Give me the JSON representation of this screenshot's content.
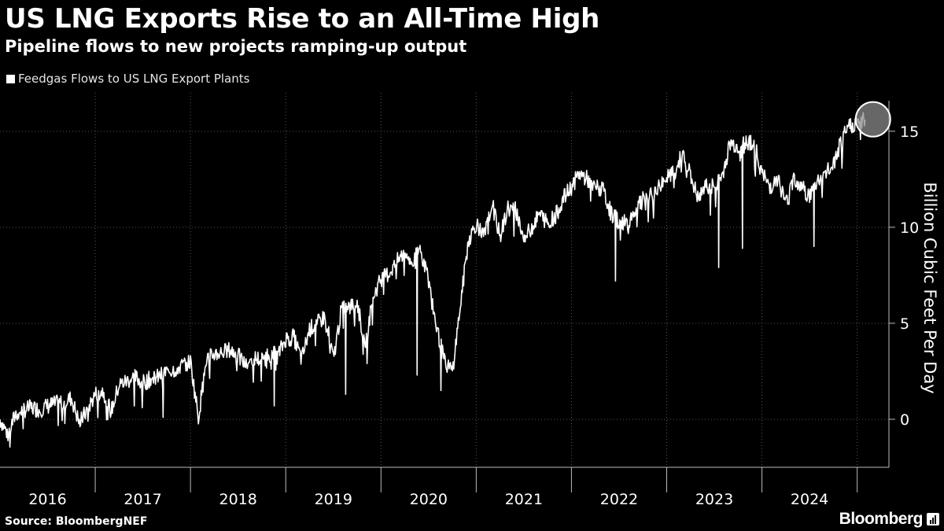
{
  "header": {
    "title": "US LNG Exports Rise to an All-Time High",
    "subtitle": "Pipeline flows to new projects ramping-up output"
  },
  "footer": {
    "source": "Source: BloombergNEF",
    "brand": "Bloomberg"
  },
  "icons": {
    "legend": "square-swatch-icon",
    "brand": "bar-chart-badge-icon",
    "highlight": "circle-highlight-icon"
  },
  "colors": {
    "background": "#000000",
    "line": "#ffffff",
    "grid": "#555555",
    "highlight": "#8a8a8a"
  },
  "chart_data": {
    "type": "line",
    "title": "US LNG Exports Rise to an All-Time High",
    "subtitle": "Pipeline flows to new projects ramping-up output",
    "ylabel": "Billion Cubic Feet Per Day",
    "ylim": [
      -2.5,
      17
    ],
    "yticks": [
      0,
      5,
      10,
      15
    ],
    "x_ticks": [
      "2016",
      "2017",
      "2018",
      "2019",
      "2020",
      "2021",
      "2022",
      "2023",
      "2024"
    ],
    "xlim": [
      "2016-01",
      "2025-05"
    ],
    "grid": true,
    "legend_position": "top-left",
    "series": [
      {
        "name": "Feedgas Flows to US LNG Export Plants",
        "x": [
          "2016-01",
          "2016-02",
          "2016-03",
          "2016-04",
          "2016-05",
          "2016-06",
          "2016-07",
          "2016-08",
          "2016-09",
          "2016-10",
          "2016-11",
          "2016-12",
          "2017-01",
          "2017-02",
          "2017-03",
          "2017-04",
          "2017-05",
          "2017-06",
          "2017-07",
          "2017-08",
          "2017-09",
          "2017-10",
          "2017-11",
          "2017-12",
          "2018-01",
          "2018-02",
          "2018-03",
          "2018-04",
          "2018-05",
          "2018-06",
          "2018-07",
          "2018-08",
          "2018-09",
          "2018-10",
          "2018-11",
          "2018-12",
          "2019-01",
          "2019-02",
          "2019-03",
          "2019-04",
          "2019-05",
          "2019-06",
          "2019-07",
          "2019-08",
          "2019-09",
          "2019-10",
          "2019-11",
          "2019-12",
          "2020-01",
          "2020-02",
          "2020-03",
          "2020-04",
          "2020-05",
          "2020-06",
          "2020-07",
          "2020-08",
          "2020-09",
          "2020-10",
          "2020-11",
          "2020-12",
          "2021-01",
          "2021-02",
          "2021-03",
          "2021-04",
          "2021-05",
          "2021-06",
          "2021-07",
          "2021-08",
          "2021-09",
          "2021-10",
          "2021-11",
          "2021-12",
          "2022-01",
          "2022-02",
          "2022-03",
          "2022-04",
          "2022-05",
          "2022-06",
          "2022-07",
          "2022-08",
          "2022-09",
          "2022-10",
          "2022-11",
          "2022-12",
          "2023-01",
          "2023-02",
          "2023-03",
          "2023-04",
          "2023-05",
          "2023-06",
          "2023-07",
          "2023-08",
          "2023-09",
          "2023-10",
          "2023-11",
          "2023-12",
          "2024-01",
          "2024-02",
          "2024-03",
          "2024-04",
          "2024-05",
          "2024-06",
          "2024-07",
          "2024-08",
          "2024-09",
          "2024-10",
          "2024-11",
          "2024-12",
          "2025-01",
          "2025-02"
        ],
        "values": [
          0.0,
          -0.8,
          0.3,
          0.5,
          0.6,
          0.5,
          0.7,
          0.8,
          0.9,
          1.1,
          -0.2,
          0.5,
          1.3,
          1.5,
          0.4,
          1.8,
          2.0,
          2.2,
          1.9,
          2.1,
          2.2,
          2.5,
          2.6,
          2.8,
          3.0,
          0.1,
          3.1,
          3.4,
          3.5,
          3.6,
          3.3,
          2.8,
          3.2,
          3.1,
          3.4,
          3.3,
          4.2,
          4.3,
          3.1,
          4.7,
          5.0,
          5.4,
          3.1,
          5.7,
          5.8,
          6.1,
          3.8,
          6.4,
          7.3,
          7.6,
          8.2,
          8.7,
          8.1,
          9.0,
          7.2,
          4.8,
          3.0,
          2.5,
          5.9,
          9.3,
          10.2,
          9.5,
          11.3,
          9.5,
          11.0,
          10.9,
          9.4,
          10.0,
          10.7,
          10.2,
          10.6,
          11.5,
          12.1,
          12.8,
          12.5,
          12.1,
          11.9,
          10.7,
          10.3,
          10.2,
          10.9,
          11.4,
          11.6,
          12.1,
          12.6,
          12.8,
          13.9,
          12.7,
          11.4,
          12.2,
          12.1,
          12.7,
          14.4,
          14.2,
          14.5,
          14.4,
          12.8,
          12.1,
          12.6,
          11.2,
          12.6,
          12.1,
          11.6,
          12.4,
          12.8,
          13.2,
          14.5,
          15.3,
          15.4,
          15.6
        ],
        "dips": [
          {
            "x": "2017-09",
            "value": 0.1
          },
          {
            "x": "2018-11",
            "value": 0.7
          },
          {
            "x": "2019-08",
            "value": 1.3
          },
          {
            "x": "2020-05",
            "value": 2.3
          },
          {
            "x": "2020-08",
            "value": 1.5
          },
          {
            "x": "2022-06",
            "value": 7.2
          },
          {
            "x": "2023-07",
            "value": 7.9
          },
          {
            "x": "2023-10",
            "value": 8.9
          },
          {
            "x": "2024-07",
            "value": 9.0
          }
        ]
      }
    ],
    "annotations": [
      {
        "type": "circle",
        "x": "2025-02",
        "value": 15.6
      }
    ]
  }
}
